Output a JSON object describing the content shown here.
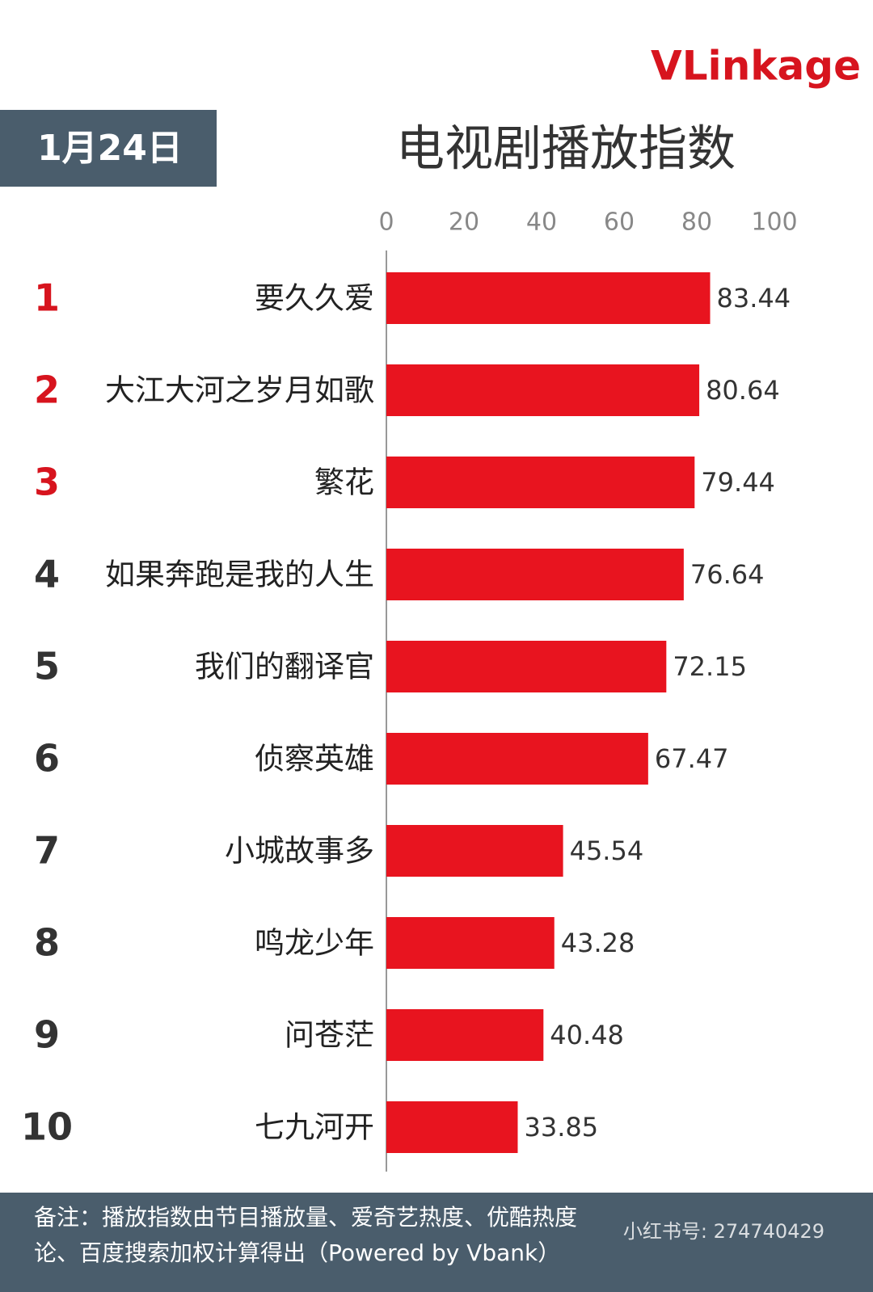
{
  "logo": "VLinkage",
  "date": "1月24日",
  "chart_data": {
    "type": "bar",
    "orientation": "horizontal",
    "title": "电视剧播放指数",
    "ranks": [
      "1",
      "2",
      "3",
      "4",
      "5",
      "6",
      "7",
      "8",
      "9",
      "10"
    ],
    "rank_colors": [
      "#d7141e",
      "#d7141e",
      "#d7141e",
      "#333333",
      "#333333",
      "#333333",
      "#333333",
      "#333333",
      "#333333",
      "#333333"
    ],
    "categories": [
      "要久久爱",
      "大江大河之岁月如歌",
      "繁花",
      "如果奔跑是我的人生",
      "我们的翻译官",
      "侦察英雄",
      "小城故事多",
      "鸣龙少年",
      "问苍茫",
      "七九河开"
    ],
    "values": [
      83.44,
      80.64,
      79.44,
      76.64,
      72.15,
      67.47,
      45.54,
      43.28,
      40.48,
      33.85
    ],
    "color": "#e8141f",
    "xlim": [
      0,
      100
    ],
    "xticks": [
      0,
      20,
      40,
      60,
      80,
      100
    ]
  },
  "footer": {
    "lines": [
      "备注：播放指数由节目播放量、爱奇艺热度、优酷热度",
      "论、百度搜索加权计算得出（Powered by Vbank）"
    ],
    "watermark": "小红书号: 274740429"
  }
}
